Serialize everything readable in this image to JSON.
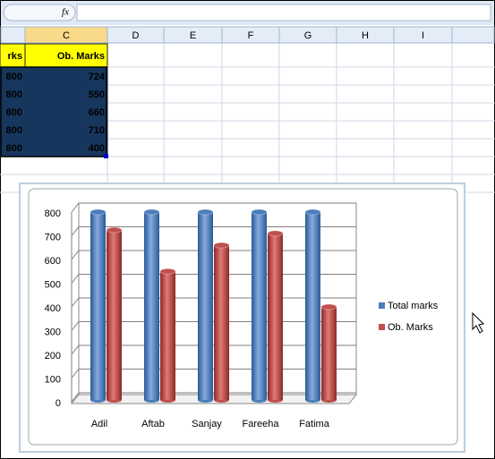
{
  "formula_bar": {
    "fx": "fx"
  },
  "columns": [
    "C",
    "D",
    "E",
    "F",
    "G",
    "H",
    "I"
  ],
  "table": {
    "rows": [
      [
        "rks",
        "Ob. Marks"
      ],
      [
        800,
        724
      ],
      [
        800,
        550
      ],
      [
        800,
        660
      ],
      [
        800,
        710
      ],
      [
        800,
        400
      ]
    ]
  },
  "chart_data": {
    "type": "bar",
    "categories": [
      "Adil",
      "Aftab",
      "Sanjay",
      "Fareeha",
      "Fatima"
    ],
    "series": [
      {
        "name": "Total marks",
        "color": "#4a7ebb",
        "values": [
          800,
          800,
          800,
          800,
          800
        ]
      },
      {
        "name": "Ob. Marks",
        "color": "#c0504d",
        "values": [
          724,
          550,
          660,
          710,
          400
        ]
      }
    ],
    "ylim": [
      0,
      800
    ],
    "yticks": [
      0,
      100,
      200,
      300,
      400,
      500,
      600,
      700,
      800
    ],
    "grid": true,
    "legend": "right"
  }
}
